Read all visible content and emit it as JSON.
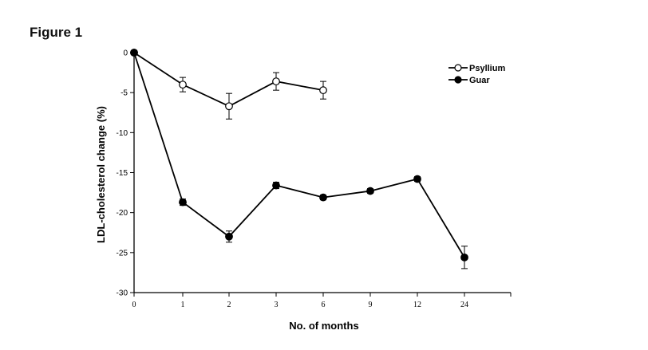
{
  "figure_label": "Figure 1",
  "chart_data": {
    "type": "line",
    "title": "",
    "xlabel": "No. of months",
    "ylabel": "LDL-cholesterol change (%)",
    "categories": [
      "0",
      "1",
      "2",
      "3",
      "6",
      "9",
      "12",
      "24"
    ],
    "ylim": [
      -30,
      0
    ],
    "yticks": [
      0,
      -5,
      -10,
      -15,
      -20,
      -25,
      -30
    ],
    "ytick_labels": [
      "0",
      "-5",
      "-10",
      "-15",
      "-20",
      "-25",
      "-30"
    ],
    "grid": false,
    "legend_position": "top-right",
    "series": [
      {
        "name": "Psyllium",
        "marker": "open-circle",
        "color": "#000000",
        "values": [
          0,
          -4.0,
          -6.7,
          -3.6,
          -4.7,
          null,
          null,
          null
        ],
        "errors": [
          0,
          0.9,
          1.6,
          1.1,
          1.1,
          null,
          null,
          null
        ]
      },
      {
        "name": "Guar",
        "marker": "filled-circle",
        "color": "#000000",
        "values": [
          0,
          -18.7,
          -23.0,
          -16.6,
          -18.1,
          -17.3,
          -15.8,
          -25.6
        ],
        "errors": [
          0,
          0.4,
          0.7,
          0.4,
          0.3,
          0.3,
          0.3,
          1.4
        ]
      }
    ]
  }
}
